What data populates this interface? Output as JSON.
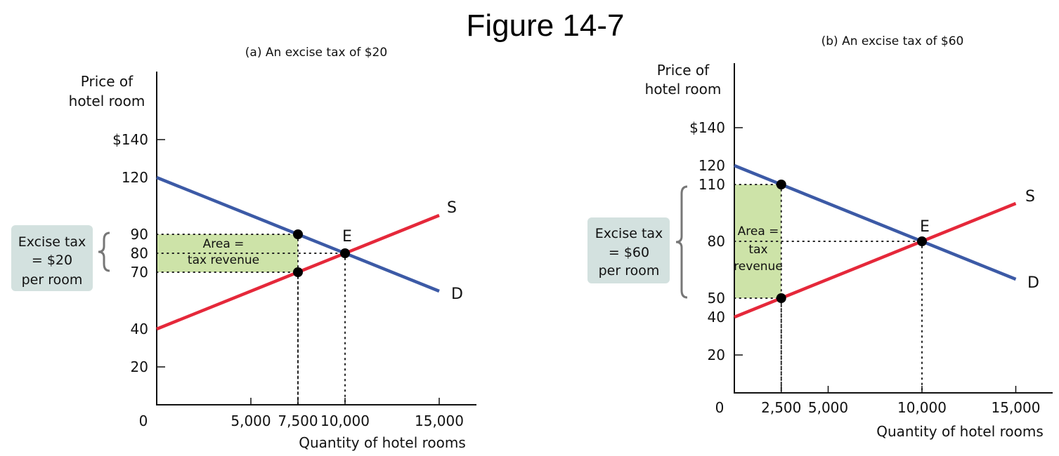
{
  "figure_title": "Figure 14-7",
  "colors": {
    "demand": "#3c5aa6",
    "supply": "#e5283a",
    "area": "#cde3a8",
    "callout": "#d3e1df",
    "brace": "#777777"
  },
  "chart_data": [
    {
      "type": "line",
      "subtitle": "(a) An excise tax of $20",
      "xlabel": "Quantity of hotel rooms",
      "ylabel": [
        "Price of",
        "hotel room"
      ],
      "xlim": [
        0,
        17000
      ],
      "ylim": [
        0,
        140
      ],
      "x_ticks": [
        {
          "value": 5000,
          "label": "5,000"
        },
        {
          "value": 7500,
          "label": "7,500"
        },
        {
          "value": 10000,
          "label": "10,000"
        },
        {
          "value": 15000,
          "label": "15,000"
        }
      ],
      "y_ticks": [
        {
          "value": 140,
          "label": "$140",
          "tick": true
        },
        {
          "value": 120,
          "label": "120",
          "tick": false
        },
        {
          "value": 90,
          "label": "90",
          "tick": false
        },
        {
          "value": 80,
          "label": "80",
          "tick": false
        },
        {
          "value": 70,
          "label": "70",
          "tick": false
        },
        {
          "value": 40,
          "label": "40",
          "tick": false
        },
        {
          "value": 20,
          "label": "20",
          "tick": true
        }
      ],
      "origin_label": "0",
      "series": [
        {
          "name": "D",
          "x": [
            0,
            15000
          ],
          "y": [
            120,
            60
          ]
        },
        {
          "name": "S",
          "x": [
            0,
            15000
          ],
          "y": [
            40,
            100
          ]
        }
      ],
      "points": [
        {
          "x": 7500,
          "y": 90
        },
        {
          "x": 7500,
          "y": 70
        },
        {
          "x": 10000,
          "y": 80,
          "label": "E"
        }
      ],
      "tax_area": {
        "x": [
          0,
          7500
        ],
        "y": [
          70,
          90
        ],
        "text": [
          "Area =",
          "tax revenue"
        ]
      },
      "tax_callout": {
        "text": [
          "Excise tax",
          "= $20",
          "per room"
        ]
      }
    },
    {
      "type": "line",
      "subtitle": "(b) An excise tax of $60",
      "xlabel": "Quantity of hotel rooms",
      "ylabel": [
        "Price of",
        "hotel room"
      ],
      "xlim": [
        0,
        17000
      ],
      "ylim": [
        0,
        140
      ],
      "x_ticks": [
        {
          "value": 2500,
          "label": "2,500"
        },
        {
          "value": 5000,
          "label": "5,000"
        },
        {
          "value": 10000,
          "label": "10,000"
        },
        {
          "value": 15000,
          "label": "15,000"
        }
      ],
      "y_ticks": [
        {
          "value": 140,
          "label": "$140",
          "tick": true
        },
        {
          "value": 120,
          "label": "120",
          "tick": false
        },
        {
          "value": 110,
          "label": "110",
          "tick": false
        },
        {
          "value": 80,
          "label": "80",
          "tick": false
        },
        {
          "value": 50,
          "label": "50",
          "tick": false
        },
        {
          "value": 40,
          "label": "40",
          "tick": false
        },
        {
          "value": 20,
          "label": "20",
          "tick": true
        }
      ],
      "origin_label": "0",
      "series": [
        {
          "name": "D",
          "x": [
            0,
            15000
          ],
          "y": [
            120,
            60
          ]
        },
        {
          "name": "S",
          "x": [
            0,
            15000
          ],
          "y": [
            40,
            100
          ]
        }
      ],
      "points": [
        {
          "x": 2500,
          "y": 110
        },
        {
          "x": 2500,
          "y": 50
        },
        {
          "x": 10000,
          "y": 80,
          "label": "E"
        }
      ],
      "tax_area": {
        "x": [
          0,
          2500
        ],
        "y": [
          50,
          110
        ],
        "text": [
          "Area =",
          "tax",
          "revenue"
        ]
      },
      "tax_callout": {
        "text": [
          "Excise tax",
          "= $60",
          "per room"
        ]
      }
    }
  ]
}
